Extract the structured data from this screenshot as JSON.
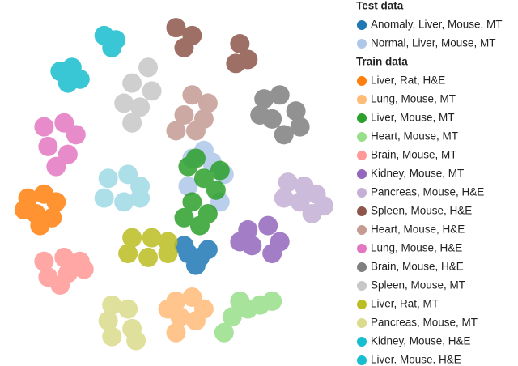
{
  "chart_data": {
    "type": "scatter",
    "xlim": [
      0,
      100
    ],
    "ylim": [
      0,
      100
    ],
    "series": [
      {
        "name": "Anomaly, Liver, Mouse, MT",
        "group": "Test data",
        "color": "#1f77b4",
        "x": [
          54.8,
          58.3,
          60.7,
          57.1,
          53.6
        ],
        "values": [
          30.3,
          29.2,
          31.4,
          27,
          32.5
        ]
      },
      {
        "name": "Normal, Liver, Mouse, MT",
        "group": "Test data",
        "color": "#aec7e8",
        "x": [
          56,
          61.9,
          65.5,
          59.5,
          54.8,
          64.3
        ],
        "values": [
          56.9,
          55.8,
          52.4,
          59.1,
          49.1,
          44.7
        ]
      },
      {
        "name": "Liver, Rat, H&E",
        "group": "Train data",
        "color": "#ff7f0e",
        "x": [
          7.1,
          11.9,
          15.5,
          9.5,
          14.3,
          6,
          10.7
        ],
        "values": [
          45.8,
          46.9,
          44.7,
          41.4,
          40.3,
          42.5,
          38.1
        ]
      },
      {
        "name": "Lung, Mouse, MT",
        "group": "Train data",
        "color": "#ffbb78",
        "x": [
          51.2,
          56,
          59.5,
          52.4,
          51.2,
          57.1,
          48.8
        ],
        "values": [
          17,
          18.1,
          14.8,
          12.6,
          8.2,
          11.5,
          14.8
        ]
      },
      {
        "name": "Liver, Mouse, MT",
        "group": "Train data",
        "color": "#2ca02c",
        "x": [
          54.8,
          59.5,
          63.1,
          56,
          60.7,
          53.6,
          58.3,
          64.3,
          57.1
        ],
        "values": [
          54.6,
          51.3,
          48,
          44.7,
          41.4,
          40.3,
          38.1,
          53.5,
          56.9
        ]
      },
      {
        "name": "Heart, Mouse, MT",
        "group": "Train data",
        "color": "#98df8a",
        "x": [
          70.2,
          76.2,
          79.8,
          67.9,
          65.5,
          72.6
        ],
        "values": [
          17,
          15.9,
          17,
          12.6,
          8.2,
          14.8
        ]
      },
      {
        "name": "Brain, Mouse, MT",
        "group": "Train data",
        "color": "#ff9896",
        "x": [
          11.9,
          17.9,
          22.6,
          13.1,
          19,
          23.8,
          16.7
        ],
        "values": [
          28.1,
          29.2,
          28.1,
          23.7,
          24.8,
          25.9,
          21.5
        ]
      },
      {
        "name": "Kidney, Mouse, MT",
        "group": "Train data",
        "color": "#9467bd",
        "x": [
          72.6,
          78.6,
          82.1,
          73.8,
          79.8,
          70.2
        ],
        "values": [
          36.9,
          38.1,
          33.6,
          32.5,
          30.3,
          33.6
        ]
      },
      {
        "name": "Pancreas, Mouse, H&E",
        "group": "Train data",
        "color": "#c5b0d5",
        "x": [
          84.5,
          89.3,
          92.9,
          88.1,
          95.2,
          91.7,
          83.3
        ],
        "values": [
          50.2,
          49.1,
          46.9,
          44.7,
          43.6,
          41.4,
          45.8
        ]
      },
      {
        "name": "Spleen, Mouse, H&E",
        "group": "Train data",
        "color": "#8c564b",
        "x": [
          51.2,
          56,
          53.6,
          70.2,
          72.6,
          69
        ],
        "values": [
          93.4,
          91.2,
          87.8,
          88.9,
          84.5,
          83.4
        ]
      },
      {
        "name": "Heart, Mouse, H&E",
        "group": "Train data",
        "color": "#c49c94",
        "x": [
          56,
          60.7,
          53.6,
          59.5,
          51.2,
          57.1
        ],
        "values": [
          74.6,
          72.3,
          69,
          67.9,
          64.6,
          64.6
        ]
      },
      {
        "name": "Lung, Mouse, H&E",
        "group": "Train data",
        "color": "#e377c2",
        "x": [
          11.9,
          17.9,
          21.4,
          13.1,
          19,
          15.5
        ],
        "values": [
          65.7,
          66.8,
          63.5,
          60.2,
          58,
          54.6
        ]
      },
      {
        "name": "Brain, Mouse, H&E",
        "group": "Train data",
        "color": "#7f7f7f",
        "x": [
          77.4,
          82.1,
          86.9,
          79.8,
          88.1,
          83.3,
          76.2
        ],
        "values": [
          73.5,
          74.6,
          70.1,
          67.9,
          65.7,
          63.5,
          69
        ]
      },
      {
        "name": "Spleen, Mouse, MT",
        "group": "Train data",
        "color": "#c7c7c7",
        "x": [
          42.9,
          38.1,
          44,
          35.7,
          40.5,
          38.1
        ],
        "values": [
          82.3,
          77.9,
          75.7,
          72.3,
          71.2,
          66.8
        ]
      },
      {
        "name": "Liver, Rat, MT",
        "group": "Train data",
        "color": "#bcbd22",
        "x": [
          38.1,
          44,
          48.8,
          36.9,
          42.9,
          48.8
        ],
        "values": [
          34.7,
          34.7,
          33.6,
          30.3,
          29.2,
          30.3
        ]
      },
      {
        "name": "Pancreas, Mouse, MT",
        "group": "Train data",
        "color": "#dbdb8d",
        "x": [
          32.1,
          36.9,
          31,
          38.1,
          32.1,
          39.3
        ],
        "values": [
          15.9,
          14.8,
          11.5,
          9.3,
          7.1,
          6
        ]
      },
      {
        "name": "Kidney, Mouse, H&E",
        "group": "Train data",
        "color": "#17becf",
        "x": [
          29.8,
          33.3,
          32.1
        ],
        "values": [
          91.2,
          90,
          87.8
        ]
      },
      {
        "name": "Liver. Mouse. H&E",
        "group": "Train data",
        "color": "#17becf",
        "x": [
          16.7,
          20.2,
          19,
          22.6
        ],
        "values": [
          81.2,
          82.3,
          77.9,
          79
        ]
      },
      {
        "name": null,
        "color": "#9edae5",
        "x": [
          31,
          36.9,
          40.5,
          29.8,
          35.7,
          40.5
        ],
        "values": [
          51.3,
          52.4,
          49.1,
          45.8,
          44.7,
          45.8
        ]
      }
    ]
  }
}
